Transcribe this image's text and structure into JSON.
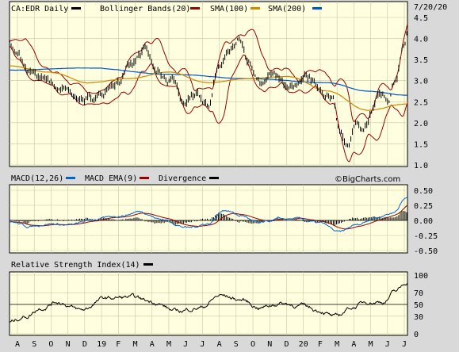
{
  "chart_data": [
    {
      "type": "line",
      "panel": "price",
      "title": "CA:EDR Daily",
      "date": "7/20/20",
      "legend": [
        {
          "label": "Bollinger Bands(20)",
          "color": "#990000"
        },
        {
          "label": "SMA(100)",
          "color": "#cc8800"
        },
        {
          "label": "SMA(200)",
          "color": "#0055cc"
        }
      ],
      "title_swatch_color": "#000000",
      "ylim": [
        1.0,
        4.5
      ],
      "yticks": [
        "4.5",
        "4.0",
        "3.5",
        "3.0",
        "2.5",
        "2.0",
        "1.5",
        "1.0"
      ],
      "xticks": [
        "A",
        "S",
        "O",
        "N",
        "D",
        "19",
        "F",
        "M",
        "A",
        "M",
        "J",
        "J",
        "A",
        "S",
        "O",
        "N",
        "D",
        "20",
        "F",
        "M",
        "A",
        "M",
        "J",
        "J"
      ],
      "close_anchors": [
        {
          "t": 0,
          "v": 3.9
        },
        {
          "t": 0.02,
          "v": 3.6
        },
        {
          "t": 0.05,
          "v": 3.15
        },
        {
          "t": 0.09,
          "v": 3.05
        },
        {
          "t": 0.13,
          "v": 2.8
        },
        {
          "t": 0.17,
          "v": 2.6
        },
        {
          "t": 0.2,
          "v": 2.55
        },
        {
          "t": 0.23,
          "v": 2.7
        },
        {
          "t": 0.27,
          "v": 2.95
        },
        {
          "t": 0.3,
          "v": 3.3
        },
        {
          "t": 0.34,
          "v": 3.7
        },
        {
          "t": 0.37,
          "v": 3.2
        },
        {
          "t": 0.41,
          "v": 2.95
        },
        {
          "t": 0.44,
          "v": 2.55
        },
        {
          "t": 0.47,
          "v": 2.7
        },
        {
          "t": 0.5,
          "v": 2.45
        },
        {
          "t": 0.52,
          "v": 3.2
        },
        {
          "t": 0.55,
          "v": 3.6
        },
        {
          "t": 0.58,
          "v": 3.9
        },
        {
          "t": 0.6,
          "v": 3.35
        },
        {
          "t": 0.63,
          "v": 2.95
        },
        {
          "t": 0.66,
          "v": 3.2
        },
        {
          "t": 0.69,
          "v": 2.9
        },
        {
          "t": 0.72,
          "v": 2.85
        },
        {
          "t": 0.75,
          "v": 3.05
        },
        {
          "t": 0.78,
          "v": 2.85
        },
        {
          "t": 0.81,
          "v": 2.55
        },
        {
          "t": 0.83,
          "v": 1.8
        },
        {
          "t": 0.85,
          "v": 1.55
        },
        {
          "t": 0.87,
          "v": 2.0
        },
        {
          "t": 0.89,
          "v": 1.85
        },
        {
          "t": 0.91,
          "v": 2.2
        },
        {
          "t": 0.93,
          "v": 2.6
        },
        {
          "t": 0.95,
          "v": 2.5
        },
        {
          "t": 0.97,
          "v": 2.95
        },
        {
          "t": 0.99,
          "v": 3.8
        },
        {
          "t": 1.0,
          "v": 4.1
        }
      ],
      "sma100_anchors": [
        {
          "t": 0,
          "v": 3.35
        },
        {
          "t": 0.1,
          "v": 3.2
        },
        {
          "t": 0.2,
          "v": 2.95
        },
        {
          "t": 0.3,
          "v": 3.05
        },
        {
          "t": 0.4,
          "v": 3.2
        },
        {
          "t": 0.5,
          "v": 2.95
        },
        {
          "t": 0.6,
          "v": 3.05
        },
        {
          "t": 0.7,
          "v": 3.1
        },
        {
          "t": 0.8,
          "v": 2.75
        },
        {
          "t": 0.9,
          "v": 2.3
        },
        {
          "t": 1.0,
          "v": 2.45
        }
      ],
      "sma200_anchors": [
        {
          "t": 0,
          "v": 3.25
        },
        {
          "t": 0.2,
          "v": 3.3
        },
        {
          "t": 0.4,
          "v": 3.15
        },
        {
          "t": 0.6,
          "v": 3.05
        },
        {
          "t": 0.8,
          "v": 2.95
        },
        {
          "t": 0.9,
          "v": 2.75
        },
        {
          "t": 1.0,
          "v": 2.65
        }
      ]
    },
    {
      "type": "line",
      "panel": "macd",
      "legend": [
        {
          "label": "MACD(12,26)",
          "color": "#000000"
        },
        {
          "label": "MACD EMA(9)",
          "color": "#0066cc"
        },
        {
          "label": "Divergence",
          "color": "#990000"
        }
      ],
      "divergence_swatch_color": "#000000",
      "watermark": "©BigCharts.com",
      "ylim": [
        -0.5,
        0.5
      ],
      "yticks": [
        "0.50",
        "0.25",
        "0.00",
        "-0.25",
        "-0.50"
      ],
      "macd_anchors": [
        {
          "t": 0,
          "v": -0.02
        },
        {
          "t": 0.05,
          "v": -0.1
        },
        {
          "t": 0.1,
          "v": -0.05
        },
        {
          "t": 0.15,
          "v": -0.08
        },
        {
          "t": 0.22,
          "v": 0.02
        },
        {
          "t": 0.28,
          "v": 0.08
        },
        {
          "t": 0.33,
          "v": 0.15
        },
        {
          "t": 0.38,
          "v": 0.02
        },
        {
          "t": 0.45,
          "v": -0.12
        },
        {
          "t": 0.5,
          "v": -0.05
        },
        {
          "t": 0.54,
          "v": 0.18
        },
        {
          "t": 0.58,
          "v": 0.08
        },
        {
          "t": 0.63,
          "v": -0.05
        },
        {
          "t": 0.68,
          "v": 0.02
        },
        {
          "t": 0.73,
          "v": 0.02
        },
        {
          "t": 0.78,
          "v": -0.05
        },
        {
          "t": 0.83,
          "v": -0.2
        },
        {
          "t": 0.87,
          "v": -0.08
        },
        {
          "t": 0.92,
          "v": 0.05
        },
        {
          "t": 0.96,
          "v": 0.12
        },
        {
          "t": 1.0,
          "v": 0.38
        }
      ]
    },
    {
      "type": "line",
      "panel": "rsi",
      "legend": [
        {
          "label": "Relative Strength Index(14)",
          "color": "#000000"
        }
      ],
      "ylim": [
        0,
        100
      ],
      "yticks": [
        "100",
        "70",
        "50",
        "30",
        "0"
      ],
      "rsi_anchors": [
        {
          "t": 0,
          "v": 20
        },
        {
          "t": 0.04,
          "v": 30
        },
        {
          "t": 0.08,
          "v": 45
        },
        {
          "t": 0.12,
          "v": 55
        },
        {
          "t": 0.18,
          "v": 40
        },
        {
          "t": 0.24,
          "v": 60
        },
        {
          "t": 0.3,
          "v": 62
        },
        {
          "t": 0.36,
          "v": 55
        },
        {
          "t": 0.42,
          "v": 38
        },
        {
          "t": 0.48,
          "v": 45
        },
        {
          "t": 0.53,
          "v": 65
        },
        {
          "t": 0.58,
          "v": 58
        },
        {
          "t": 0.63,
          "v": 45
        },
        {
          "t": 0.68,
          "v": 52
        },
        {
          "t": 0.73,
          "v": 48
        },
        {
          "t": 0.78,
          "v": 40
        },
        {
          "t": 0.82,
          "v": 28
        },
        {
          "t": 0.86,
          "v": 45
        },
        {
          "t": 0.9,
          "v": 55
        },
        {
          "t": 0.94,
          "v": 55
        },
        {
          "t": 0.97,
          "v": 72
        },
        {
          "t": 1.0,
          "v": 88
        }
      ]
    }
  ]
}
